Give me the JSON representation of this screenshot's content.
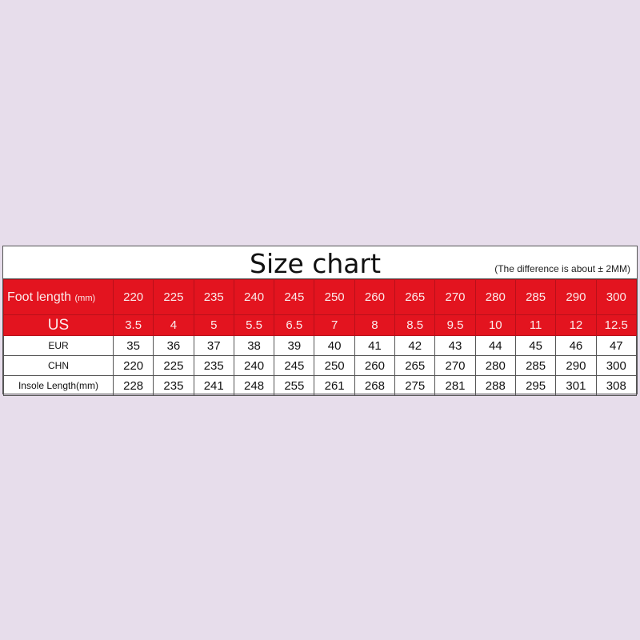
{
  "title": "Size chart",
  "note": "(The difference is about ± 2MM)",
  "colors": {
    "header_red": "#e3141f",
    "background": "#e7ddeb"
  },
  "rows": [
    {
      "label": "Foot length",
      "unit": "(mm)",
      "style": "red",
      "values": [
        "220",
        "225",
        "235",
        "240",
        "245",
        "250",
        "260",
        "265",
        "270",
        "280",
        "285",
        "290",
        "300"
      ]
    },
    {
      "label": "US",
      "style": "red",
      "values": [
        "3.5",
        "4",
        "5",
        "5.5",
        "6.5",
        "7",
        "8",
        "8.5",
        "9.5",
        "10",
        "11",
        "12",
        "12.5"
      ]
    },
    {
      "label": "EUR",
      "style": "white",
      "values": [
        "35",
        "36",
        "37",
        "38",
        "39",
        "40",
        "41",
        "42",
        "43",
        "44",
        "45",
        "46",
        "47"
      ]
    },
    {
      "label": "CHN",
      "style": "white",
      "values": [
        "220",
        "225",
        "235",
        "240",
        "245",
        "250",
        "260",
        "265",
        "270",
        "280",
        "285",
        "290",
        "300"
      ]
    },
    {
      "label": "Insole Length(mm)",
      "style": "white",
      "values": [
        "228",
        "235",
        "241",
        "248",
        "255",
        "261",
        "268",
        "275",
        "281",
        "288",
        "295",
        "301",
        "308"
      ]
    }
  ]
}
